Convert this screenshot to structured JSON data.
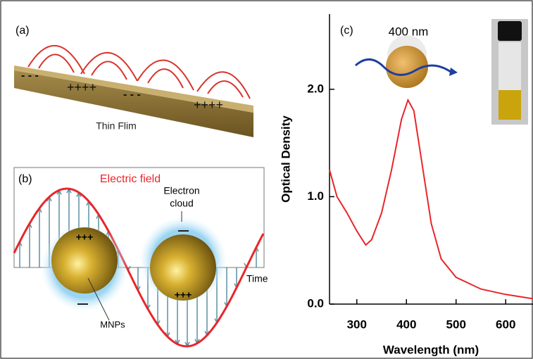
{
  "panel_a": {
    "label": "(a)",
    "caption": "Thin Flim",
    "charges": [
      "- - -",
      "++++",
      "- - -",
      "++++"
    ]
  },
  "panel_b": {
    "label": "(b)",
    "field_label": "Electric field",
    "cloud_label": [
      "Electron",
      "cloud"
    ],
    "particle_label": "MNPs",
    "time_label": "Time",
    "charges": [
      "+++",
      "+++"
    ]
  },
  "chart_data": {
    "type": "line",
    "panel_label": "(c)",
    "annotation": "400 nm",
    "xlabel": "Wavelength (nm)",
    "ylabel": "Optical Density",
    "color": "#e8262b",
    "x": [
      245,
      260,
      280,
      300,
      318,
      330,
      350,
      370,
      390,
      403,
      415,
      430,
      450,
      470,
      500,
      550,
      600,
      655
    ],
    "values": [
      1.25,
      1.0,
      0.85,
      0.68,
      0.55,
      0.6,
      0.85,
      1.25,
      1.72,
      1.9,
      1.8,
      1.35,
      0.75,
      0.42,
      0.25,
      0.14,
      0.09,
      0.05
    ],
    "xlim": [
      245,
      655
    ],
    "ylim": [
      0,
      2.7
    ],
    "xticks": [
      300,
      400,
      500,
      600
    ],
    "yticks": [
      {
        "value": 0,
        "label": "0.0"
      },
      {
        "value": 1,
        "label": "1.0"
      },
      {
        "value": 2,
        "label": "2.0"
      }
    ]
  }
}
